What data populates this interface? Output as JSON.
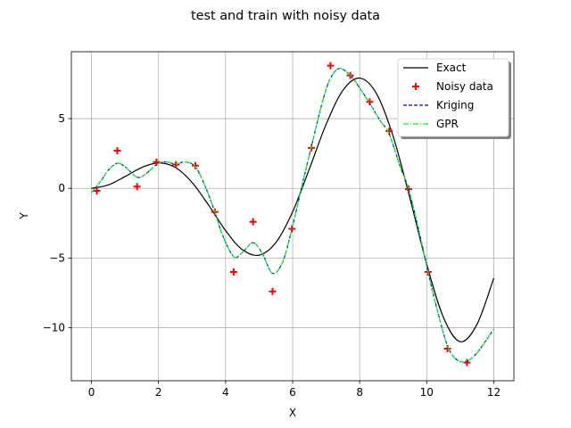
{
  "chart_data": {
    "type": "line",
    "title": "test and train with noisy data",
    "xlabel": "X",
    "ylabel": "Y",
    "xlim": [
      -0.6,
      12.6
    ],
    "ylim": [
      -13.8,
      9.8
    ],
    "xticks": [
      0,
      2,
      4,
      6,
      8,
      10,
      12
    ],
    "yticks": [
      -10,
      -5,
      0,
      5
    ],
    "xtick_labels": [
      "0",
      "2",
      "4",
      "6",
      "8",
      "10",
      "12"
    ],
    "ytick_labels": [
      "−10",
      "−5",
      "0",
      "5"
    ],
    "grid": true,
    "legend": {
      "position": "upper right",
      "entries": [
        "Exact",
        "Noisy data",
        "Kriging",
        "GPR"
      ]
    },
    "series": [
      {
        "name": "Exact",
        "kind": "line",
        "color": "#000000",
        "style": "solid",
        "x": [
          0,
          0.5,
          1,
          1.5,
          2,
          2.5,
          3,
          3.5,
          4,
          4.5,
          5,
          5.5,
          6,
          6.5,
          7,
          7.5,
          8,
          8.5,
          9,
          9.5,
          10,
          10.5,
          11,
          11.5,
          12
        ],
        "y": [
          0,
          0.24,
          0.84,
          1.5,
          1.82,
          1.5,
          0.42,
          -1.23,
          -3.03,
          -4.4,
          -4.79,
          -3.89,
          -1.68,
          1.4,
          4.6,
          7.03,
          7.91,
          6.8,
          3.71,
          -0.72,
          -5.44,
          -9.27,
          -11.0,
          -9.75,
          -6.44
        ]
      },
      {
        "name": "Noisy data",
        "kind": "scatter",
        "marker": "+",
        "color": "#ff0000",
        "x": [
          0.16,
          0.77,
          1.36,
          1.94,
          2.52,
          3.1,
          3.68,
          4.24,
          4.82,
          5.4,
          5.98,
          6.56,
          7.13,
          7.72,
          8.3,
          8.88,
          9.46,
          10.04,
          10.62,
          11.2
        ],
        "y": [
          -0.18,
          2.7,
          0.13,
          1.88,
          1.7,
          1.63,
          -1.7,
          -6.0,
          -2.4,
          -7.4,
          -2.9,
          2.9,
          8.8,
          8.1,
          6.2,
          4.1,
          -0.06,
          -6.0,
          -11.5,
          -12.5
        ]
      },
      {
        "name": "Kriging",
        "kind": "line",
        "color": "#0000ff",
        "style": "dashed",
        "x": [
          0,
          0.3,
          0.5,
          0.77,
          1.0,
          1.36,
          1.6,
          1.94,
          2.2,
          2.52,
          2.8,
          3.1,
          3.4,
          3.68,
          3.9,
          4.24,
          4.5,
          4.82,
          5.1,
          5.4,
          5.7,
          5.98,
          6.3,
          6.56,
          6.9,
          7.13,
          7.4,
          7.72,
          8.0,
          8.3,
          8.6,
          8.88,
          9.2,
          9.46,
          9.8,
          10.04,
          10.3,
          10.62,
          10.9,
          11.2,
          11.5,
          11.8,
          12
        ],
        "y": [
          -0.3,
          0.6,
          1.3,
          1.8,
          1.55,
          0.8,
          1.0,
          1.7,
          1.9,
          1.75,
          1.9,
          1.55,
          0.1,
          -1.7,
          -3.3,
          -4.9,
          -4.6,
          -3.9,
          -4.7,
          -6.1,
          -5.3,
          -2.9,
          0.4,
          3.0,
          6.3,
          7.9,
          8.6,
          8.1,
          7.2,
          6.1,
          4.9,
          3.9,
          1.6,
          -0.06,
          -3.4,
          -6.0,
          -8.6,
          -11.3,
          -12.3,
          -12.4,
          -11.8,
          -10.8,
          -10.1
        ]
      },
      {
        "name": "GPR",
        "kind": "line",
        "color": "#00ff00",
        "style": "dashdot",
        "x": [
          0,
          0.3,
          0.5,
          0.77,
          1.0,
          1.36,
          1.6,
          1.94,
          2.2,
          2.52,
          2.8,
          3.1,
          3.4,
          3.68,
          3.9,
          4.24,
          4.5,
          4.82,
          5.1,
          5.4,
          5.7,
          5.98,
          6.3,
          6.56,
          6.9,
          7.13,
          7.4,
          7.72,
          8.0,
          8.3,
          8.6,
          8.88,
          9.2,
          9.46,
          9.8,
          10.04,
          10.3,
          10.62,
          10.9,
          11.2,
          11.5,
          11.8,
          12
        ],
        "y": [
          -0.3,
          0.6,
          1.3,
          1.8,
          1.55,
          0.8,
          1.0,
          1.7,
          1.9,
          1.75,
          1.9,
          1.55,
          0.1,
          -1.7,
          -3.3,
          -4.9,
          -4.6,
          -3.9,
          -4.7,
          -6.1,
          -5.3,
          -2.9,
          0.4,
          3.0,
          6.3,
          7.9,
          8.6,
          8.1,
          7.2,
          6.1,
          4.9,
          3.9,
          1.6,
          -0.06,
          -3.4,
          -6.0,
          -8.6,
          -11.3,
          -12.3,
          -12.4,
          -11.8,
          -10.8,
          -10.1
        ]
      }
    ]
  }
}
